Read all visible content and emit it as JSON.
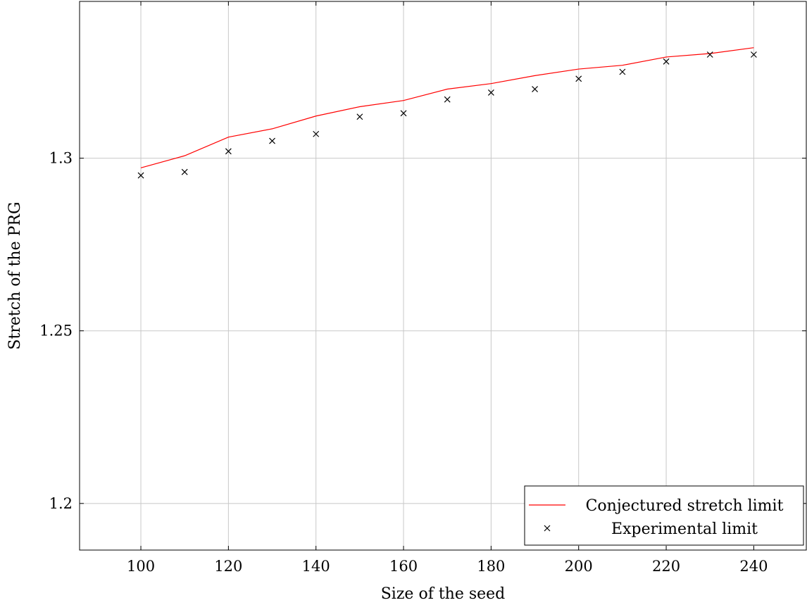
{
  "chart_data": {
    "type": "line",
    "xlabel": "Size of the seed",
    "ylabel": "Stretch of the PRG",
    "xlim": [
      86,
      252
    ],
    "ylim": [
      1.1865,
      1.3454
    ],
    "x_ticks": [
      100,
      120,
      140,
      160,
      180,
      200,
      220,
      240
    ],
    "y_ticks": [
      1.2,
      1.25,
      1.3
    ],
    "x_tick_labels": [
      "100",
      "120",
      "140",
      "160",
      "180",
      "200",
      "220",
      "240"
    ],
    "y_tick_labels": [
      "1.2",
      "1.25",
      "1.3"
    ],
    "grid": true,
    "legend_position": "bottom-right",
    "series": [
      {
        "name": "Conjectured stretch limit",
        "style": "line",
        "color": "#ff0000",
        "x": [
          100,
          110,
          120,
          130,
          140,
          150,
          160,
          170,
          180,
          190,
          200,
          210,
          220,
          230,
          240
        ],
        "y": [
          1.2972,
          1.3007,
          1.3061,
          1.3085,
          1.3122,
          1.3149,
          1.3167,
          1.32,
          1.3216,
          1.3239,
          1.3258,
          1.3269,
          1.3293,
          1.3303,
          1.332
        ]
      },
      {
        "name": "Experimental limit",
        "style": "marker",
        "marker": "x",
        "color": "#000000",
        "x": [
          100,
          110,
          120,
          130,
          140,
          150,
          160,
          170,
          180,
          190,
          200,
          210,
          220,
          230,
          240
        ],
        "y": [
          1.295,
          1.296,
          1.302,
          1.305,
          1.307,
          1.312,
          1.313,
          1.317,
          1.319,
          1.32,
          1.323,
          1.325,
          1.328,
          1.33,
          1.33
        ]
      }
    ]
  }
}
